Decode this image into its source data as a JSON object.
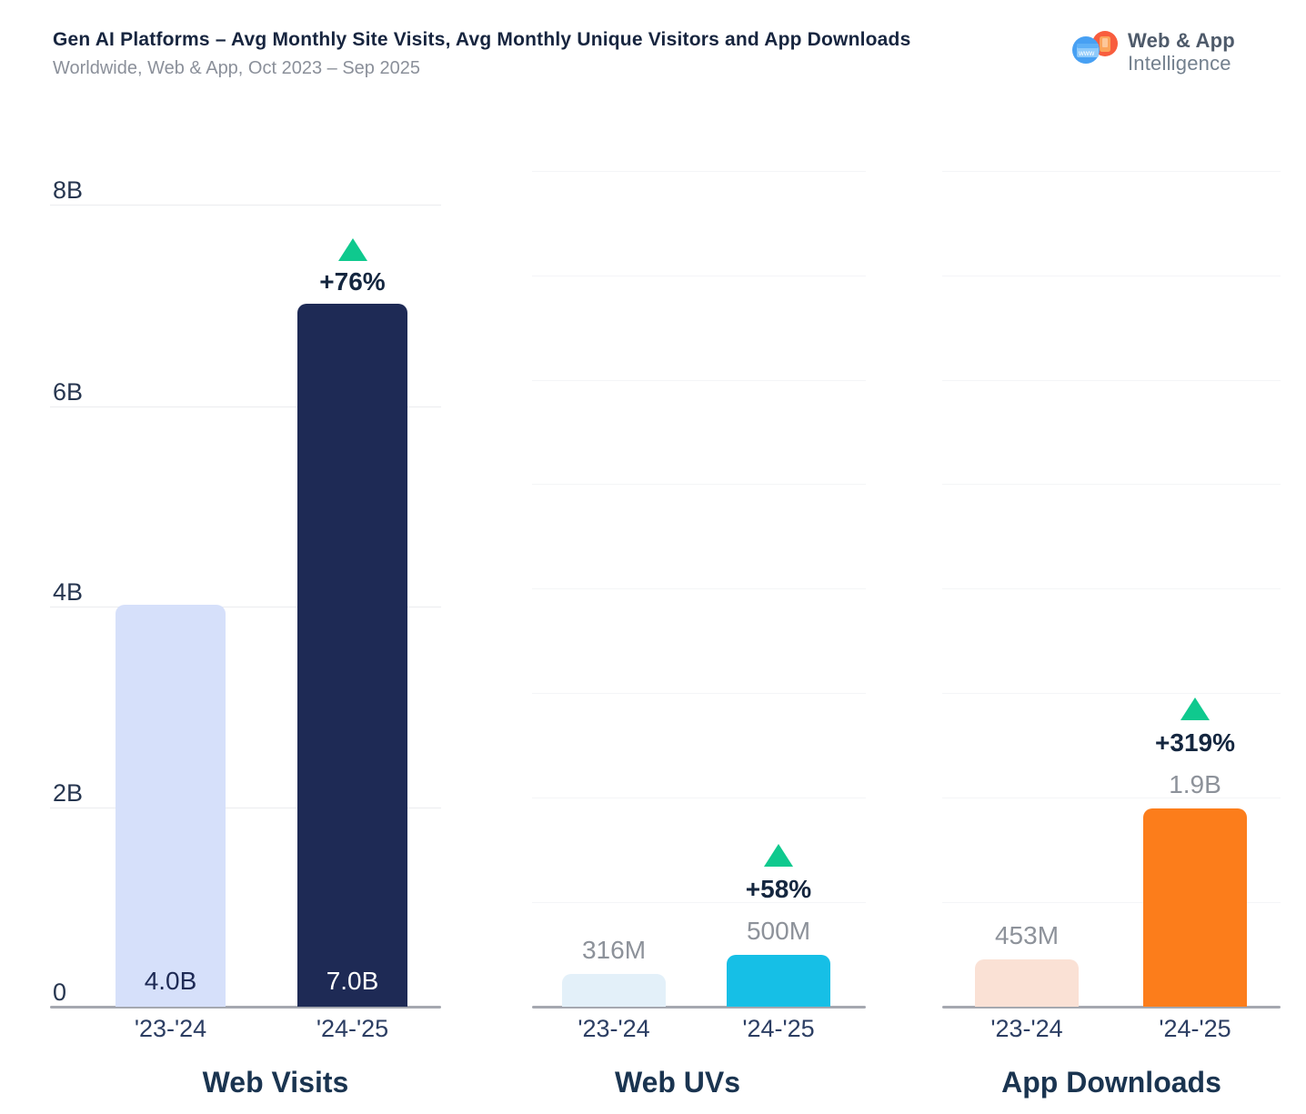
{
  "header": {
    "title": "Gen AI Platforms – Avg Monthly Site Visits, Avg Monthly Unique Visitors and App Downloads",
    "subtitle": "Worldwide, Web & App, Oct 2023 – Sep 2025"
  },
  "brand": {
    "line1": "Web & App",
    "line2": "Intelligence",
    "icon": "web-app-logo-icon"
  },
  "colors": {
    "background": "#ffffff",
    "growth_green": "#0fc98e",
    "growth_text": "#14263f",
    "title_text": "#17253f",
    "muted_text": "#8d929a",
    "axis_line": "#a5a8b0"
  },
  "chart_data": [
    {
      "type": "bar",
      "title": "Web Visits",
      "categories": [
        "'23-'24",
        "'24-'25"
      ],
      "values": [
        4.0,
        7.0
      ],
      "unit": "B",
      "value_labels": [
        "4.0B",
        "7.0B"
      ],
      "value_label_placement": "inside",
      "value_label_colors": [
        "#1e2a55",
        "#ffffff"
      ],
      "bar_colors": [
        "#d6e0fa",
        "#1e2a55"
      ],
      "growth": {
        "category": "'24-'25",
        "label": "+76%"
      },
      "y_axis": {
        "ticks": [
          "8B",
          "6B",
          "4B",
          "2B",
          "0"
        ],
        "max": 8,
        "unit": "B"
      },
      "grid": true,
      "legend": false
    },
    {
      "type": "bar",
      "title": "Web UVs",
      "categories": [
        "'23-'24",
        "'24-'25"
      ],
      "values": [
        316,
        500
      ],
      "unit": "M",
      "value_labels": [
        "316M",
        "500M"
      ],
      "value_label_placement": "above",
      "bar_colors": [
        "#e3f0f9",
        "#16bfe6"
      ],
      "growth": {
        "category": "'24-'25",
        "label": "+58%"
      },
      "y_axis": {
        "ticks": [],
        "max": 8,
        "unit": "B"
      },
      "grid": true,
      "legend": false
    },
    {
      "type": "bar",
      "title": "App Downloads",
      "categories": [
        "'23-'24",
        "'24-'25"
      ],
      "values": [
        453,
        1900
      ],
      "unit": "M",
      "value_labels": [
        "453M",
        "1.9B"
      ],
      "value_label_placement": "above",
      "bar_colors": [
        "#fae1d5",
        "#fc7d1b"
      ],
      "growth": {
        "category": "'24-'25",
        "label": "+319%"
      },
      "y_axis": {
        "ticks": [],
        "max": 8,
        "unit": "B"
      },
      "grid": true,
      "legend": false
    }
  ]
}
